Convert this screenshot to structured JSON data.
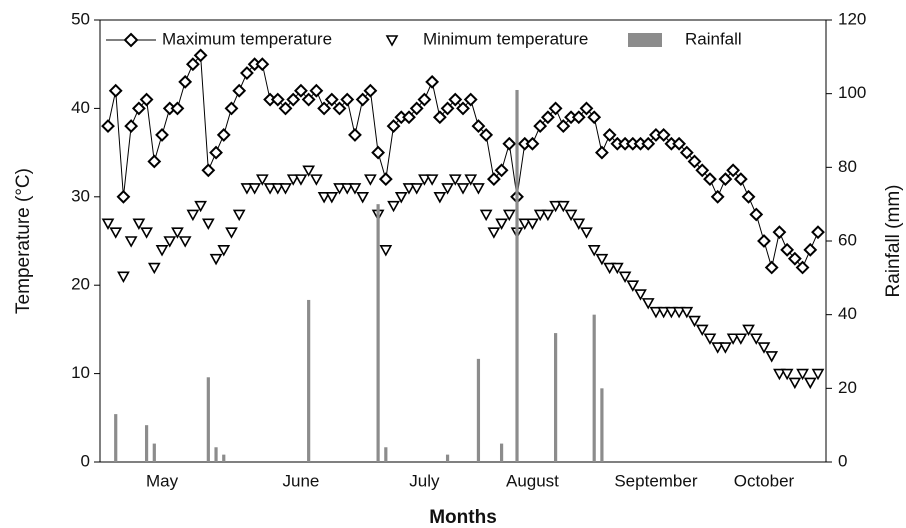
{
  "chart_data": {
    "type": "line",
    "x_label": "Months",
    "y_label": "Temperature (°C)",
    "y2_label": "Rainfall (mm)",
    "categories": [
      null,
      null,
      null,
      null,
      null,
      null,
      null,
      "May",
      null,
      null,
      null,
      null,
      null,
      null,
      null,
      null,
      null,
      null,
      null,
      null,
      null,
      null,
      null,
      null,
      null,
      "June",
      null,
      null,
      null,
      null,
      null,
      null,
      null,
      null,
      null,
      null,
      null,
      null,
      null,
      null,
      null,
      "July",
      null,
      null,
      null,
      null,
      null,
      null,
      null,
      null,
      null,
      null,
      null,
      null,
      null,
      "August",
      null,
      null,
      null,
      null,
      null,
      null,
      null,
      null,
      null,
      null,
      null,
      null,
      null,
      null,
      null,
      "September",
      null,
      null,
      null,
      null,
      null,
      null,
      null,
      null,
      null,
      null,
      null,
      null,
      null,
      "October",
      null,
      null,
      null,
      null,
      null,
      null,
      null
    ],
    "ylim": [
      0,
      50
    ],
    "yticks": [
      0,
      10,
      20,
      30,
      40,
      50
    ],
    "y2lim": [
      0,
      120
    ],
    "y2ticks": [
      0,
      20,
      40,
      60,
      80,
      100,
      120
    ],
    "series": [
      {
        "name": "Maximum temperature",
        "color": "#000000",
        "marker": "diamond",
        "values": [
          38,
          42,
          30,
          38,
          40,
          41,
          34,
          37,
          40,
          40,
          43,
          45,
          46,
          33,
          35,
          37,
          40,
          42,
          44,
          45,
          45,
          41,
          41,
          40,
          41,
          42,
          41,
          42,
          40,
          41,
          40,
          41,
          37,
          41,
          42,
          35,
          32,
          38,
          39,
          39,
          40,
          41,
          43,
          39,
          40,
          41,
          40,
          41,
          38,
          37,
          32,
          33,
          36,
          30,
          36,
          36,
          38,
          39,
          40,
          38,
          39,
          39,
          40,
          39,
          35,
          37,
          36,
          36,
          36,
          36,
          36,
          37,
          37,
          36,
          36,
          35,
          34,
          33,
          32,
          30,
          32,
          33,
          32,
          30,
          28,
          25,
          22,
          26,
          24,
          23,
          22,
          24,
          26
        ]
      },
      {
        "name": "Minimum temperature",
        "color": "#000000",
        "marker": "triangle-down",
        "values": [
          27,
          26,
          21,
          25,
          27,
          26,
          22,
          24,
          25,
          26,
          25,
          28,
          29,
          27,
          23,
          24,
          26,
          28,
          31,
          31,
          32,
          31,
          31,
          31,
          32,
          32,
          33,
          32,
          30,
          30,
          31,
          31,
          31,
          30,
          32,
          28,
          24,
          29,
          30,
          31,
          31,
          32,
          32,
          30,
          31,
          32,
          31,
          32,
          31,
          28,
          26,
          27,
          28,
          26,
          27,
          27,
          28,
          28,
          29,
          29,
          28,
          27,
          26,
          24,
          23,
          22,
          22,
          21,
          20,
          19,
          18,
          17,
          17,
          17,
          17,
          17,
          16,
          15,
          14,
          13,
          13,
          14,
          14,
          15,
          14,
          13,
          12,
          10,
          10,
          9,
          10,
          9,
          10
        ]
      },
      {
        "name": "Rainfall",
        "color": "#8c8c8c",
        "marker": "bar",
        "axis": "y2",
        "values": [
          0,
          13,
          0,
          0,
          0,
          10,
          5,
          0,
          0,
          0,
          0,
          0,
          0,
          23,
          4,
          2,
          0,
          0,
          0,
          0,
          0,
          0,
          0,
          0,
          0,
          0,
          44,
          0,
          0,
          0,
          0,
          0,
          0,
          0,
          0,
          70,
          4,
          0,
          0,
          0,
          0,
          0,
          0,
          0,
          2,
          0,
          0,
          0,
          28,
          0,
          0,
          5,
          0,
          101,
          0,
          0,
          0,
          0,
          35,
          0,
          0,
          0,
          0,
          40,
          20,
          0,
          0,
          0,
          0,
          0,
          0,
          0,
          0,
          0,
          0,
          0,
          0,
          0,
          0,
          0,
          0,
          0,
          0,
          0,
          0,
          0,
          0,
          0,
          0,
          0,
          0,
          0,
          0
        ]
      }
    ]
  }
}
